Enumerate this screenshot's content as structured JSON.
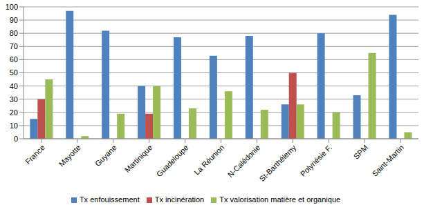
{
  "chart_data": {
    "type": "bar",
    "categories": [
      "France",
      "Mayotte",
      "Guyane",
      "Martinique",
      "Guadeloupe",
      "La Réunion",
      "N-Calédonie",
      "St-Barthélemy",
      "Polynésie F.",
      "SPM",
      "Saint-Martin"
    ],
    "series": [
      {
        "name": "Tx enfouissement",
        "color": "#4f81bd",
        "values": [
          15,
          97,
          82,
          40,
          77,
          63,
          78,
          26,
          80,
          33,
          94
        ]
      },
      {
        "name": "Tx incinération",
        "color": "#c0504d",
        "values": [
          30,
          0,
          0,
          19,
          0,
          0,
          0,
          50,
          0,
          0,
          0
        ]
      },
      {
        "name": "Tx valorisation matière et organique",
        "color": "#9bbb59",
        "values": [
          45,
          2,
          19,
          40,
          23,
          36,
          22,
          26,
          20,
          65,
          5
        ]
      }
    ],
    "ylim": [
      0,
      100
    ],
    "yticks": [
      0,
      10,
      20,
      30,
      40,
      50,
      60,
      70,
      80,
      90,
      100
    ],
    "grid": true,
    "legend": "bottom"
  }
}
